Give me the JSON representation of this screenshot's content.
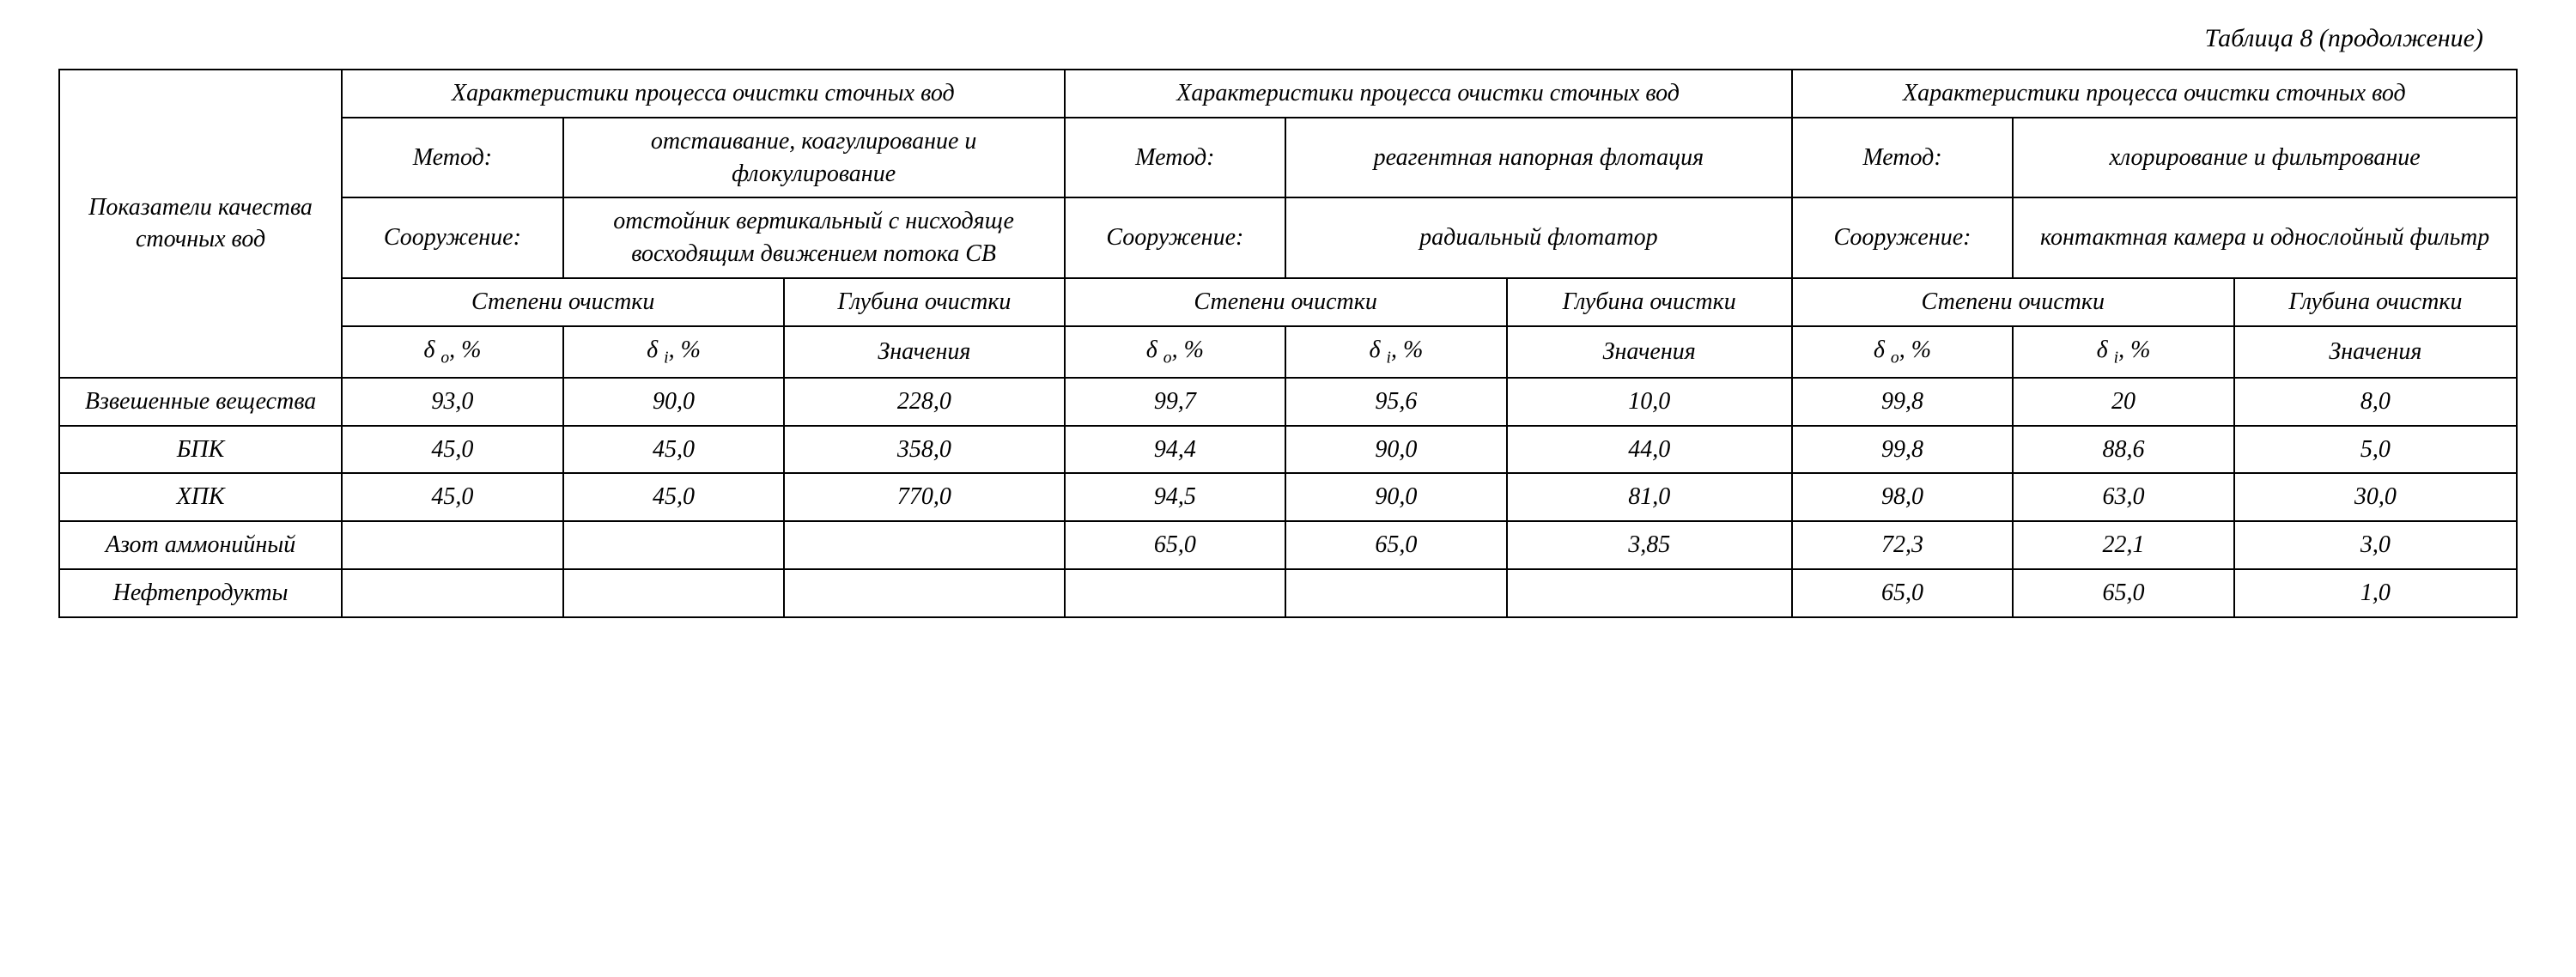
{
  "caption": "Таблица 8 (продолжение)",
  "header": {
    "rowLabel": "Показатели качества сточных вод",
    "groupTitle": "Характеристики процесса очистки сточных вод",
    "methodLabel": "Метод:",
    "structureLabel": "Сооружение:",
    "degreeLabel": "Степени очистки",
    "depthLabel": "Глубина очистки",
    "deltaO": "δ о, %",
    "deltaI": "δ i, %",
    "valuesLabel": "Значения"
  },
  "groups": {
    "g1": {
      "method": "отстаивание, коагулирование и флокулирование",
      "structure": "отстойник вертикальный с нисходяще восходящим движением потока СВ"
    },
    "g2": {
      "method": "реагентная напорная флотация",
      "structure": "радиальный флотатор"
    },
    "g3": {
      "method": "хлорирование и фильтрование",
      "structure": "контактная камера и однослойный фильтр"
    }
  },
  "rows": {
    "r1": {
      "label": "Взвешенные вещества",
      "g1": [
        "93,0",
        "90,0",
        "228,0"
      ],
      "g2": [
        "99,7",
        "95,6",
        "10,0"
      ],
      "g3": [
        "99,8",
        "20",
        "8,0"
      ]
    },
    "r2": {
      "label": "БПК",
      "g1": [
        "45,0",
        "45,0",
        "358,0"
      ],
      "g2": [
        "94,4",
        "90,0",
        "44,0"
      ],
      "g3": [
        "99,8",
        "88,6",
        "5,0"
      ]
    },
    "r3": {
      "label": "ХПК",
      "g1": [
        "45,0",
        "45,0",
        "770,0"
      ],
      "g2": [
        "94,5",
        "90,0",
        "81,0"
      ],
      "g3": [
        "98,0",
        "63,0",
        "30,0"
      ]
    },
    "r4": {
      "label": "Азот аммонийный",
      "g1": [
        "",
        "",
        ""
      ],
      "g2": [
        "65,0",
        "65,0",
        "3,85"
      ],
      "g3": [
        "72,3",
        "22,1",
        "3,0"
      ]
    },
    "r5": {
      "label": "Нефтепродукты",
      "g1": [
        "",
        "",
        ""
      ],
      "g2": [
        "",
        "",
        ""
      ],
      "g3": [
        "65,0",
        "65,0",
        "1,0"
      ]
    }
  },
  "style": {
    "columnPercents": [
      11.5,
      9.0,
      9.0,
      11.4,
      9.0,
      9.0,
      11.6,
      9.0,
      9.0,
      11.5
    ]
  }
}
